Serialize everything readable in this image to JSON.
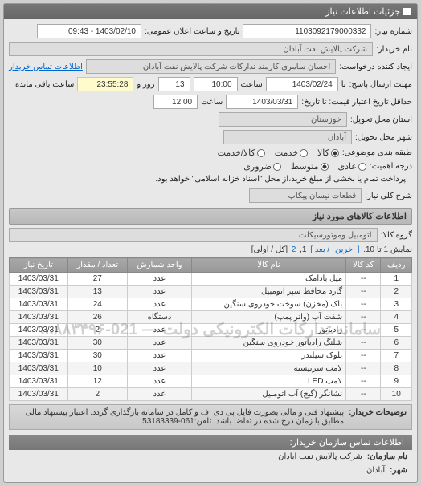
{
  "panel_title": "جزئیات اطلاعات نیاز",
  "header": {
    "req_no_label": "شماره نیاز:",
    "req_no": "1103092179000332",
    "announce_label": "تاریخ و ساعت اعلان عمومی:",
    "announce_value": "1403/02/10 - 09:43",
    "buyer_label": "نام خریدار:",
    "buyer": "شرکت پالایش نفت آبادان",
    "requester_label": "ایجاد کننده درخواست:",
    "requester": "احسان سامری کارمند تدارکات شرکت پالایش نفت آبادان",
    "contact_link": "اطلاعات تماس خریدار"
  },
  "deadline": {
    "send_label": "مهلت ارسال پاسخ:",
    "to": "تا",
    "date": "1403/02/24",
    "time_label": "ساعت",
    "time": "10:00",
    "days": "13",
    "days_label": "روز و",
    "remain": "23:55:28",
    "remain_label": "ساعت باقی مانده"
  },
  "validity": {
    "label": "حداقل تاریخ اعتبار قیمت: تا تاریخ:",
    "date": "1403/03/31",
    "time_label": "ساعت",
    "time": "12:00"
  },
  "province": {
    "label": "استان محل تحویل:",
    "value": "خوزستان"
  },
  "city": {
    "label": "شهر محل تحویل:",
    "value": "آبادان"
  },
  "pack": {
    "label": "طبقه بندی موضوعی:",
    "opt_all": "کالا",
    "opt_service": "خدمت",
    "opt_both": "کالا/خدمت"
  },
  "priority": {
    "label": "درجه اهمیت:",
    "opt_low": "عادی",
    "opt_mid": "متوسط",
    "opt_urgent": "ضروری",
    "note": "پرداخت تمام یا بخشی از مبلغ خرید،از محل \"اسناد خزانه اسلامی\" خواهد بود."
  },
  "need": {
    "label": "شرح کلی نیاز:",
    "value": "قطعات نیسان پیکاپ"
  },
  "goods_section": "اطلاعات کالاهای مورد نیاز",
  "group": {
    "label": "گروه کالا:",
    "value": "اتومبیل وموتورسیکلت"
  },
  "pager": {
    "text_a": "نمایش 1 تا 10.",
    "last": "[ آخرین",
    "next": "/ بعد ]",
    "p1": "1",
    "p2": "2",
    "tail": "[کل / اولی]"
  },
  "table": {
    "cols": [
      "ردیف",
      "کد کالا",
      "نام کالا",
      "واحد شمارش",
      "تعداد / مقدار",
      "تاریخ نیاز"
    ],
    "rows": [
      [
        "1",
        "--",
        "میل بادامک",
        "عدد",
        "27",
        "1403/03/31"
      ],
      [
        "2",
        "--",
        "گارد محافظ سپر اتومبیل",
        "عدد",
        "13",
        "1403/03/31"
      ],
      [
        "3",
        "--",
        "باک (مخزن) سوخت خودروی سنگین",
        "عدد",
        "24",
        "1403/03/31"
      ],
      [
        "4",
        "--",
        "شفت آب (واتر پمپ)",
        "دستگاه",
        "26",
        "1403/03/31"
      ],
      [
        "5",
        "--",
        "رادیاتور",
        "عدد",
        "2",
        "1403/03/31"
      ],
      [
        "6",
        "--",
        "شلنگ رادیاتور خودروی سنگین",
        "عدد",
        "30",
        "1403/03/31"
      ],
      [
        "7",
        "--",
        "بلوک سیلندر",
        "عدد",
        "30",
        "1403/03/31"
      ],
      [
        "8",
        "--",
        "لامپ سرنیسته",
        "عدد",
        "10",
        "1403/03/31"
      ],
      [
        "9",
        "--",
        "لامپ LED",
        "عدد",
        "12",
        "1403/03/31"
      ],
      [
        "10",
        "--",
        "نشانگر (گیج) آب اتومبیل",
        "عدد",
        "2",
        "1403/03/31"
      ]
    ],
    "watermark": "سامانه تدارکات الکترونیکی دولت — 021-۸۸۳۴۹۶..."
  },
  "buyer_note": {
    "label": "توضیحات خریدار:",
    "text": "پیشنهاد فنی و مالی بصورت فایل پی دی اف و کامل در سامانه بارگذاری گردد. اعتبار پیشنهاد مالی مطابق با زمان درج شده در تقاضا باشد. تلفن:061-53183339"
  },
  "org_section": "اطلاعات تماس سازمان خریدار:",
  "org": {
    "name_l": "نام سازمان:",
    "name_v": "شرکت پالایش نفت آبادان",
    "city_l": "شهر:",
    "city_v": "آبادان"
  }
}
